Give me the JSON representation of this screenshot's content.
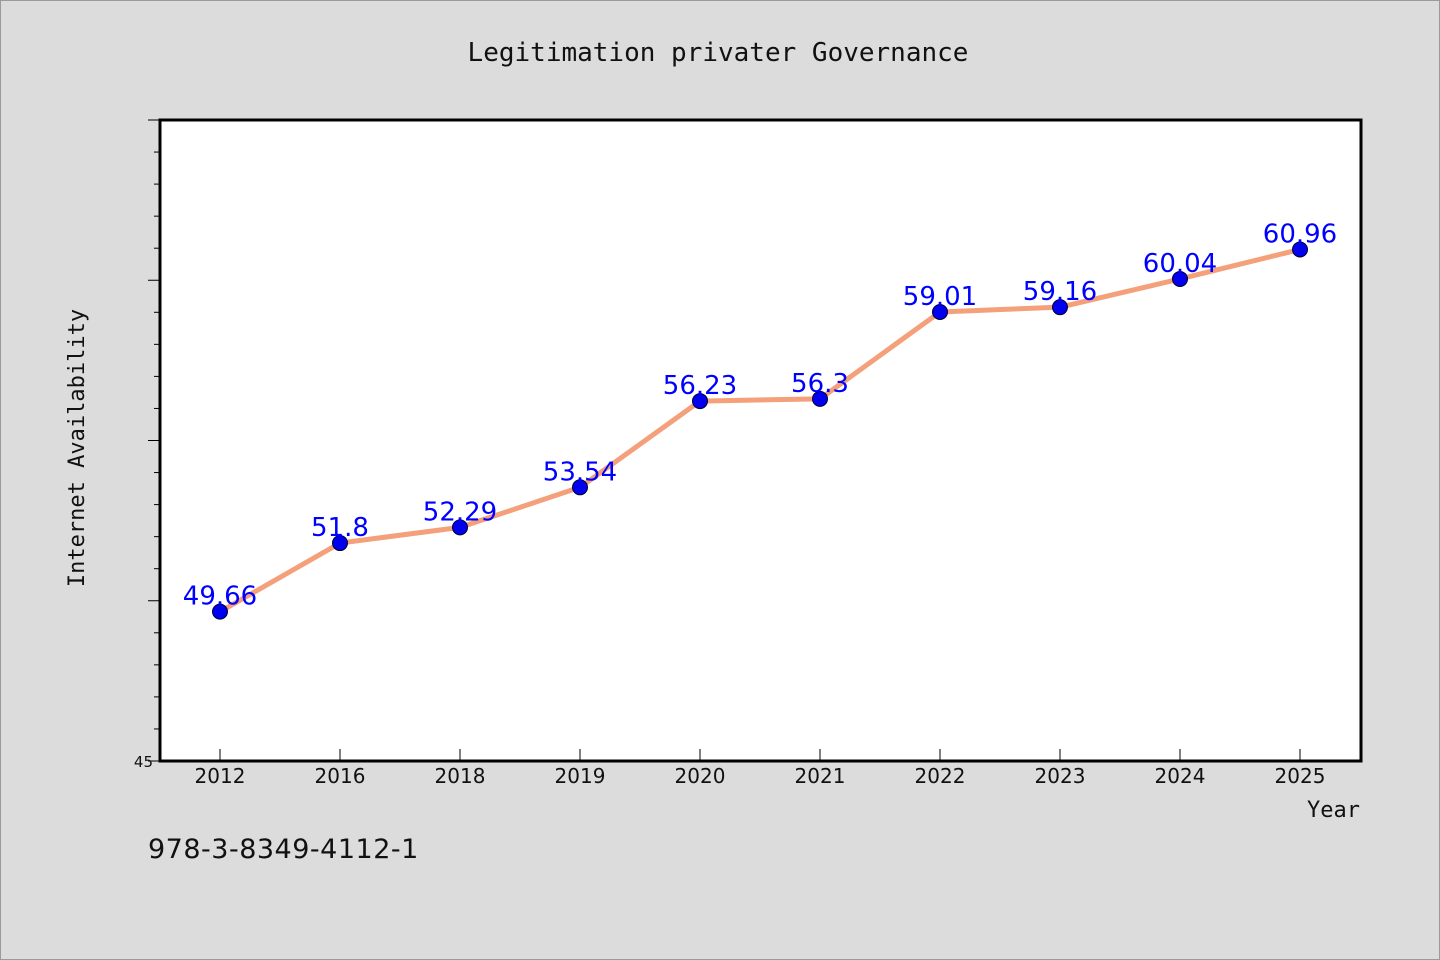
{
  "chart_data": {
    "type": "line",
    "title": "Legitimation privater Governance",
    "xlabel": "Year",
    "ylabel": "Internet Availability",
    "categories": [
      "2012",
      "2016",
      "2018",
      "2019",
      "2020",
      "2021",
      "2022",
      "2023",
      "2024",
      "2025"
    ],
    "series": [
      {
        "values": [
          49.66,
          51.8,
          52.29,
          53.54,
          56.23,
          56.3,
          59.01,
          59.16,
          60.04,
          60.96
        ],
        "labels": [
          "49.66",
          "51.8",
          "52.29",
          "53.54",
          "56.23",
          "56.3",
          "59.01",
          "59.16",
          "60.04",
          "60.96"
        ],
        "line_color": "#f4a07a",
        "marker_color": "#0000ee",
        "label_color": "#0000ff"
      }
    ],
    "ylim": [
      45,
      65
    ],
    "y_tick_labels": [
      "45"
    ],
    "grid": false,
    "legend": "none"
  },
  "footer": {
    "isbn": "978-3-8349-4112-1"
  }
}
